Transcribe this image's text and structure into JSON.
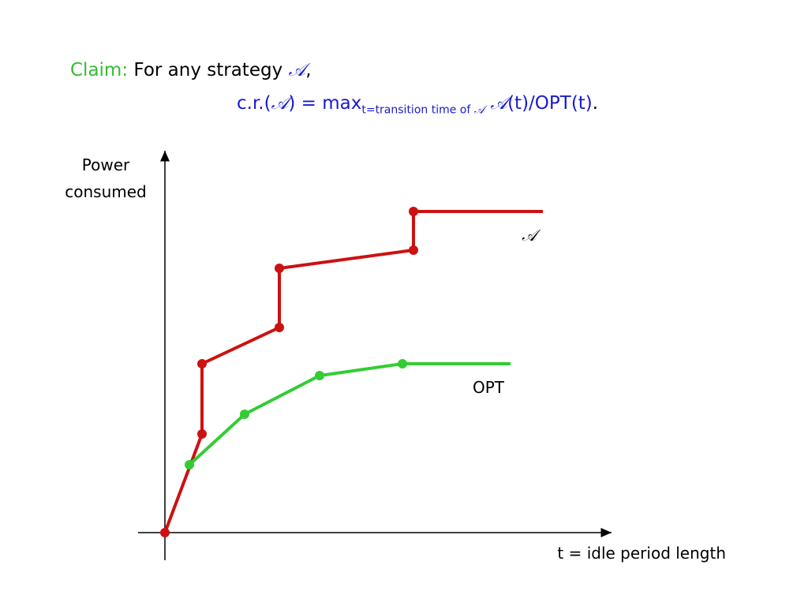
{
  "claim": {
    "label": "Claim:",
    "text": "For any strategy",
    "symbol": "𝒜",
    "punct": ",",
    "prefix": "c.r.(",
    "symbol2": "𝒜",
    "middle": ") = max",
    "subscript": "t=transition time of",
    "sub_symbol": "𝒜",
    "symbol3": "𝒜",
    "suffix": "(t)/OPT(t)",
    "end": "."
  },
  "chart_data": {
    "type": "line",
    "x_label": "t = idle period length",
    "y_label": "Power consumed",
    "xlim": [
      -3.4,
      56.1
    ],
    "ylim": [
      -3.5,
      48
    ],
    "series": [
      {
        "name": "𝒜",
        "color": "#cc1111",
        "x": [
          0,
          4.7,
          4.7,
          14.5,
          14.5,
          31.5,
          31.5,
          47.9
        ],
        "values": [
          0,
          12.5,
          21.4,
          26,
          33.5,
          35.8,
          40.7,
          40.7
        ]
      },
      {
        "name": "OPT",
        "color": "#33cc33",
        "x": [
          3.1,
          10.1,
          19.6,
          30.1,
          43.8
        ],
        "values": [
          8.6,
          15,
          19.9,
          21.4,
          21.4
        ]
      }
    ]
  }
}
